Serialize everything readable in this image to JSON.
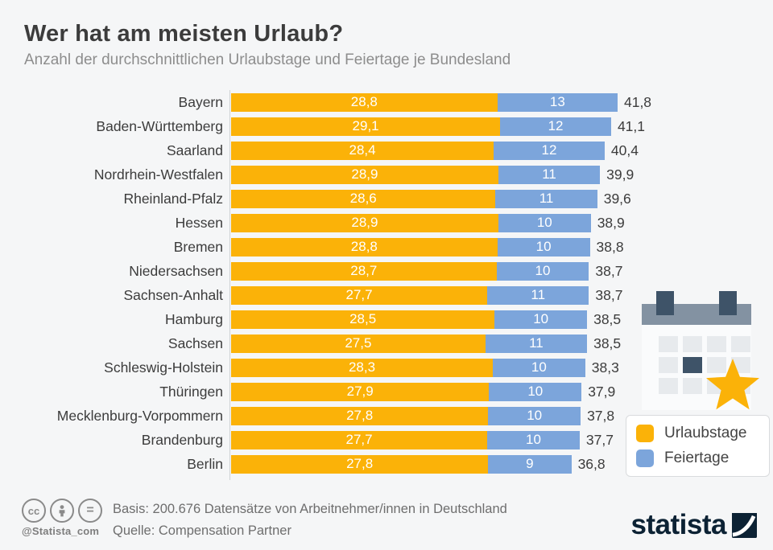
{
  "title": "Wer hat am meisten Urlaub?",
  "subtitle": "Anzahl der durchschnittlichen Urlaubstage und Feiertage je Bundesland",
  "colors": {
    "orange": "#FBB208",
    "blue": "#7CA5DB",
    "background": "#F5F6F7",
    "navy": "#0C2234",
    "calendar_slate": "#8392A2",
    "calendar_dark": "#3E5368"
  },
  "chart_data": {
    "type": "bar",
    "orientation": "horizontal",
    "stacked": true,
    "categories": [
      "Bayern",
      "Baden-Württemberg",
      "Saarland",
      "Nordrhein-Westfalen",
      "Rheinland-Pfalz",
      "Hessen",
      "Bremen",
      "Niedersachsen",
      "Sachsen-Anhalt",
      "Hamburg",
      "Sachsen",
      "Schleswig-Holstein",
      "Thüringen",
      "Mecklenburg-Vorpommern",
      "Brandenburg",
      "Berlin"
    ],
    "series": [
      {
        "name": "Urlaubstage",
        "color": "#FBB208",
        "values": [
          28.8,
          29.1,
          28.4,
          28.9,
          28.6,
          28.9,
          28.8,
          28.7,
          27.7,
          28.5,
          27.5,
          28.3,
          27.9,
          27.8,
          27.7,
          27.8
        ]
      },
      {
        "name": "Feiertage",
        "color": "#7CA5DB",
        "values": [
          13,
          12,
          12,
          11,
          11,
          10,
          10,
          10,
          11,
          10,
          11,
          10,
          10,
          10,
          10,
          9
        ]
      }
    ],
    "totals": [
      41.8,
      41.1,
      40.4,
      39.9,
      39.6,
      38.9,
      38.8,
      38.7,
      38.7,
      38.5,
      38.5,
      38.3,
      37.9,
      37.8,
      37.7,
      36.8
    ],
    "xlim": [
      0,
      41.8
    ],
    "value_label_style": "white inside segments, dark totals outside right",
    "decimal_separator": ",",
    "legend_position": "bottom-right",
    "grid": false
  },
  "legend": {
    "items": [
      {
        "label": "Urlaubstage",
        "color": "#FBB208"
      },
      {
        "label": "Feiertage",
        "color": "#7CA5DB"
      }
    ]
  },
  "footer": {
    "license_icons": [
      "cc-icon",
      "attribution-person-icon",
      "equals-nd-icon"
    ],
    "handle": "@Statista_com",
    "basis": "Basis: 200.676 Datensätze von Arbeitnehmer/innen in Deutschland",
    "source": "Quelle: Compensation Partner",
    "brand": "statista"
  },
  "illustration": "calendar with marked day and orange star"
}
